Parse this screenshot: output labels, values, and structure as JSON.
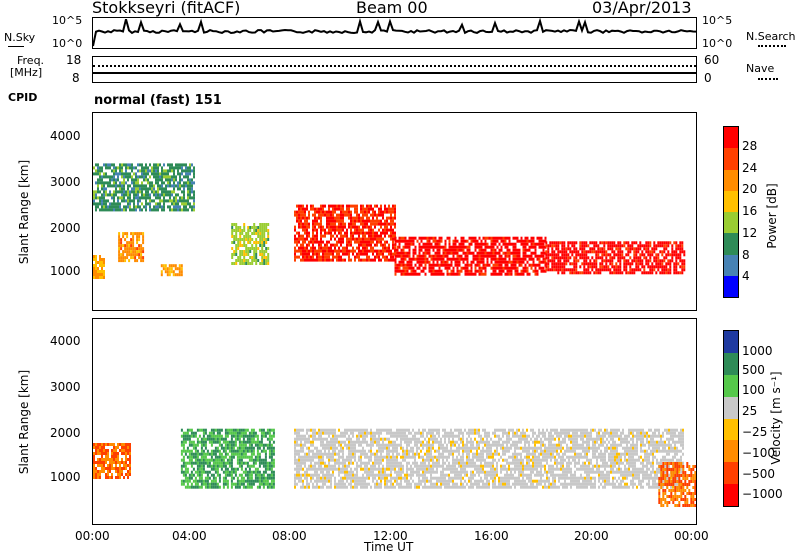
{
  "header": {
    "station": "Stokkseyri (fitACF)",
    "beam": "Beam 00",
    "date": "03/Apr/2013"
  },
  "top_panels": {
    "nsky_label": "N.Sky",
    "nsky_top_tick": "10^5",
    "nsky_bottom_tick": "10^0",
    "nsearch_label": "N.Search",
    "freq_label_1": "Freq.",
    "freq_label_2": "[MHz]",
    "freq_ticks": [
      "18",
      "8"
    ],
    "nave_ticks": [
      "60",
      "0"
    ],
    "nave_label": "Nave",
    "cpid_label": "CPID",
    "cpid_value": "normal (fast) 151"
  },
  "axes": {
    "xlabel": "Time UT",
    "xticks": [
      "00:00",
      "04:00",
      "08:00",
      "12:00",
      "16:00",
      "20:00",
      "00:00"
    ],
    "ylabel": "Slant Range [km]",
    "yticks": [
      "4000",
      "3000",
      "2000",
      "1000"
    ]
  },
  "power_scale": {
    "label": "Power [dB]",
    "ticks": [
      "28",
      "24",
      "20",
      "16",
      "12",
      "8",
      "4"
    ],
    "colors": [
      "#ff0000",
      "#ff4000",
      "#ff8c00",
      "#ffc000",
      "#9acd32",
      "#2e8b57",
      "#4682b4",
      "#0000ff"
    ]
  },
  "velocity_scale": {
    "label": "Velocity [m s⁻¹]",
    "ticks": [
      "1000",
      "500",
      "100",
      "25",
      "−25",
      "−100",
      "−500",
      "−1000"
    ],
    "colors": [
      "#1f3aa0",
      "#2e8b57",
      "#55c84a",
      "#c8c8c8",
      "#ffc000",
      "#ff8c00",
      "#ff4000",
      "#ff0000"
    ]
  },
  "chart_data": {
    "type": "heatmap",
    "x_range_hours": [
      0,
      24
    ],
    "y_range_km": [
      200,
      4500
    ],
    "power_structures": [
      {
        "t": [
          0.0,
          0.4
        ],
        "r": [
          900,
          1400
        ],
        "power_db": 18
      },
      {
        "t": [
          1.0,
          2.0
        ],
        "r": [
          1300,
          1900
        ],
        "power_db": 20
      },
      {
        "t": [
          2.7,
          3.5
        ],
        "r": [
          1000,
          1200
        ],
        "power_db": 18
      },
      {
        "t": [
          5.5,
          7.0
        ],
        "r": [
          1200,
          2100
        ],
        "power_db": 12
      },
      {
        "t": [
          8.0,
          12.0
        ],
        "r": [
          1300,
          2500
        ],
        "power_db": 26
      },
      {
        "t": [
          12.0,
          18.0
        ],
        "r": [
          1000,
          1800
        ],
        "power_db": 28
      },
      {
        "t": [
          18.0,
          23.5
        ],
        "r": [
          1000,
          1700
        ],
        "power_db": 28
      },
      {
        "t": [
          0.0,
          4.0
        ],
        "r": [
          2400,
          3400
        ],
        "power_db": 8
      }
    ],
    "velocity_structures": [
      {
        "t": [
          0.0,
          1.5
        ],
        "r": [
          1200,
          1900
        ],
        "velocity": -300
      },
      {
        "t": [
          3.5,
          7.2
        ],
        "r": [
          1000,
          2200
        ],
        "velocity": 80
      },
      {
        "t": [
          8.0,
          23.5
        ],
        "r": [
          1000,
          2200
        ],
        "velocity": 0
      },
      {
        "t": [
          22.5,
          24.0
        ],
        "r": [
          600,
          1500
        ],
        "velocity": -600
      }
    ]
  }
}
